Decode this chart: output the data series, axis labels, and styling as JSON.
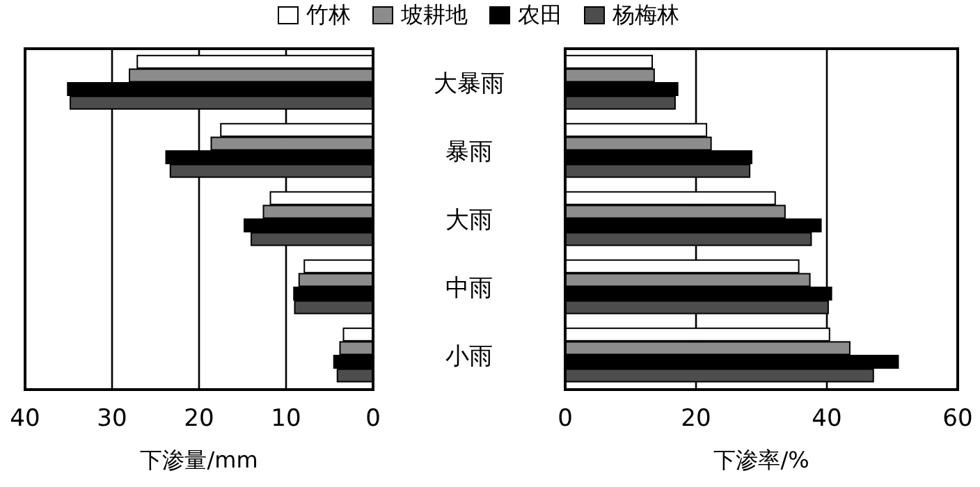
{
  "chart_data": [
    {
      "type": "bar",
      "orientation": "horizontal",
      "xlabel": "下渗量/mm",
      "categories": [
        "大暴雨",
        "暴雨",
        "大雨",
        "中雨",
        "小雨"
      ],
      "xlim": [
        40,
        0
      ],
      "xticks": [
        40,
        30,
        20,
        10,
        0
      ],
      "grid": "x",
      "legend": "top",
      "series": [
        {
          "name": "竹林",
          "color": "#ffffff",
          "values": [
            27.1,
            17.5,
            11.8,
            7.9,
            3.4
          ]
        },
        {
          "name": "坡耕地",
          "color": "#8c8c8c",
          "values": [
            28.0,
            18.6,
            12.6,
            8.5,
            3.8
          ]
        },
        {
          "name": "农田",
          "color": "#000000",
          "values": [
            35.1,
            23.8,
            14.8,
            9.1,
            4.5
          ]
        },
        {
          "name": "杨梅林",
          "color": "#4d4d4d",
          "values": [
            34.8,
            23.3,
            14.0,
            9.0,
            4.1
          ]
        }
      ]
    },
    {
      "type": "bar",
      "orientation": "horizontal",
      "xlabel": "下渗率/%",
      "categories": [
        null,
        null,
        null,
        null,
        null
      ],
      "xlim": [
        0,
        60
      ],
      "xticks": [
        0,
        20,
        40,
        60
      ],
      "grid": "x",
      "series": [
        {
          "color": "#ffffff",
          "values": [
            13.3,
            21.6,
            32.1,
            35.7,
            40.4
          ]
        },
        {
          "color": "#8c8c8c",
          "values": [
            13.6,
            22.3,
            33.6,
            37.4,
            43.5
          ]
        },
        {
          "color": "#000000",
          "values": [
            17.2,
            28.5,
            39.1,
            40.7,
            50.9
          ]
        },
        {
          "color": "#4d4d4d",
          "values": [
            16.8,
            28.2,
            37.6,
            40.2,
            47.1
          ]
        }
      ]
    }
  ]
}
